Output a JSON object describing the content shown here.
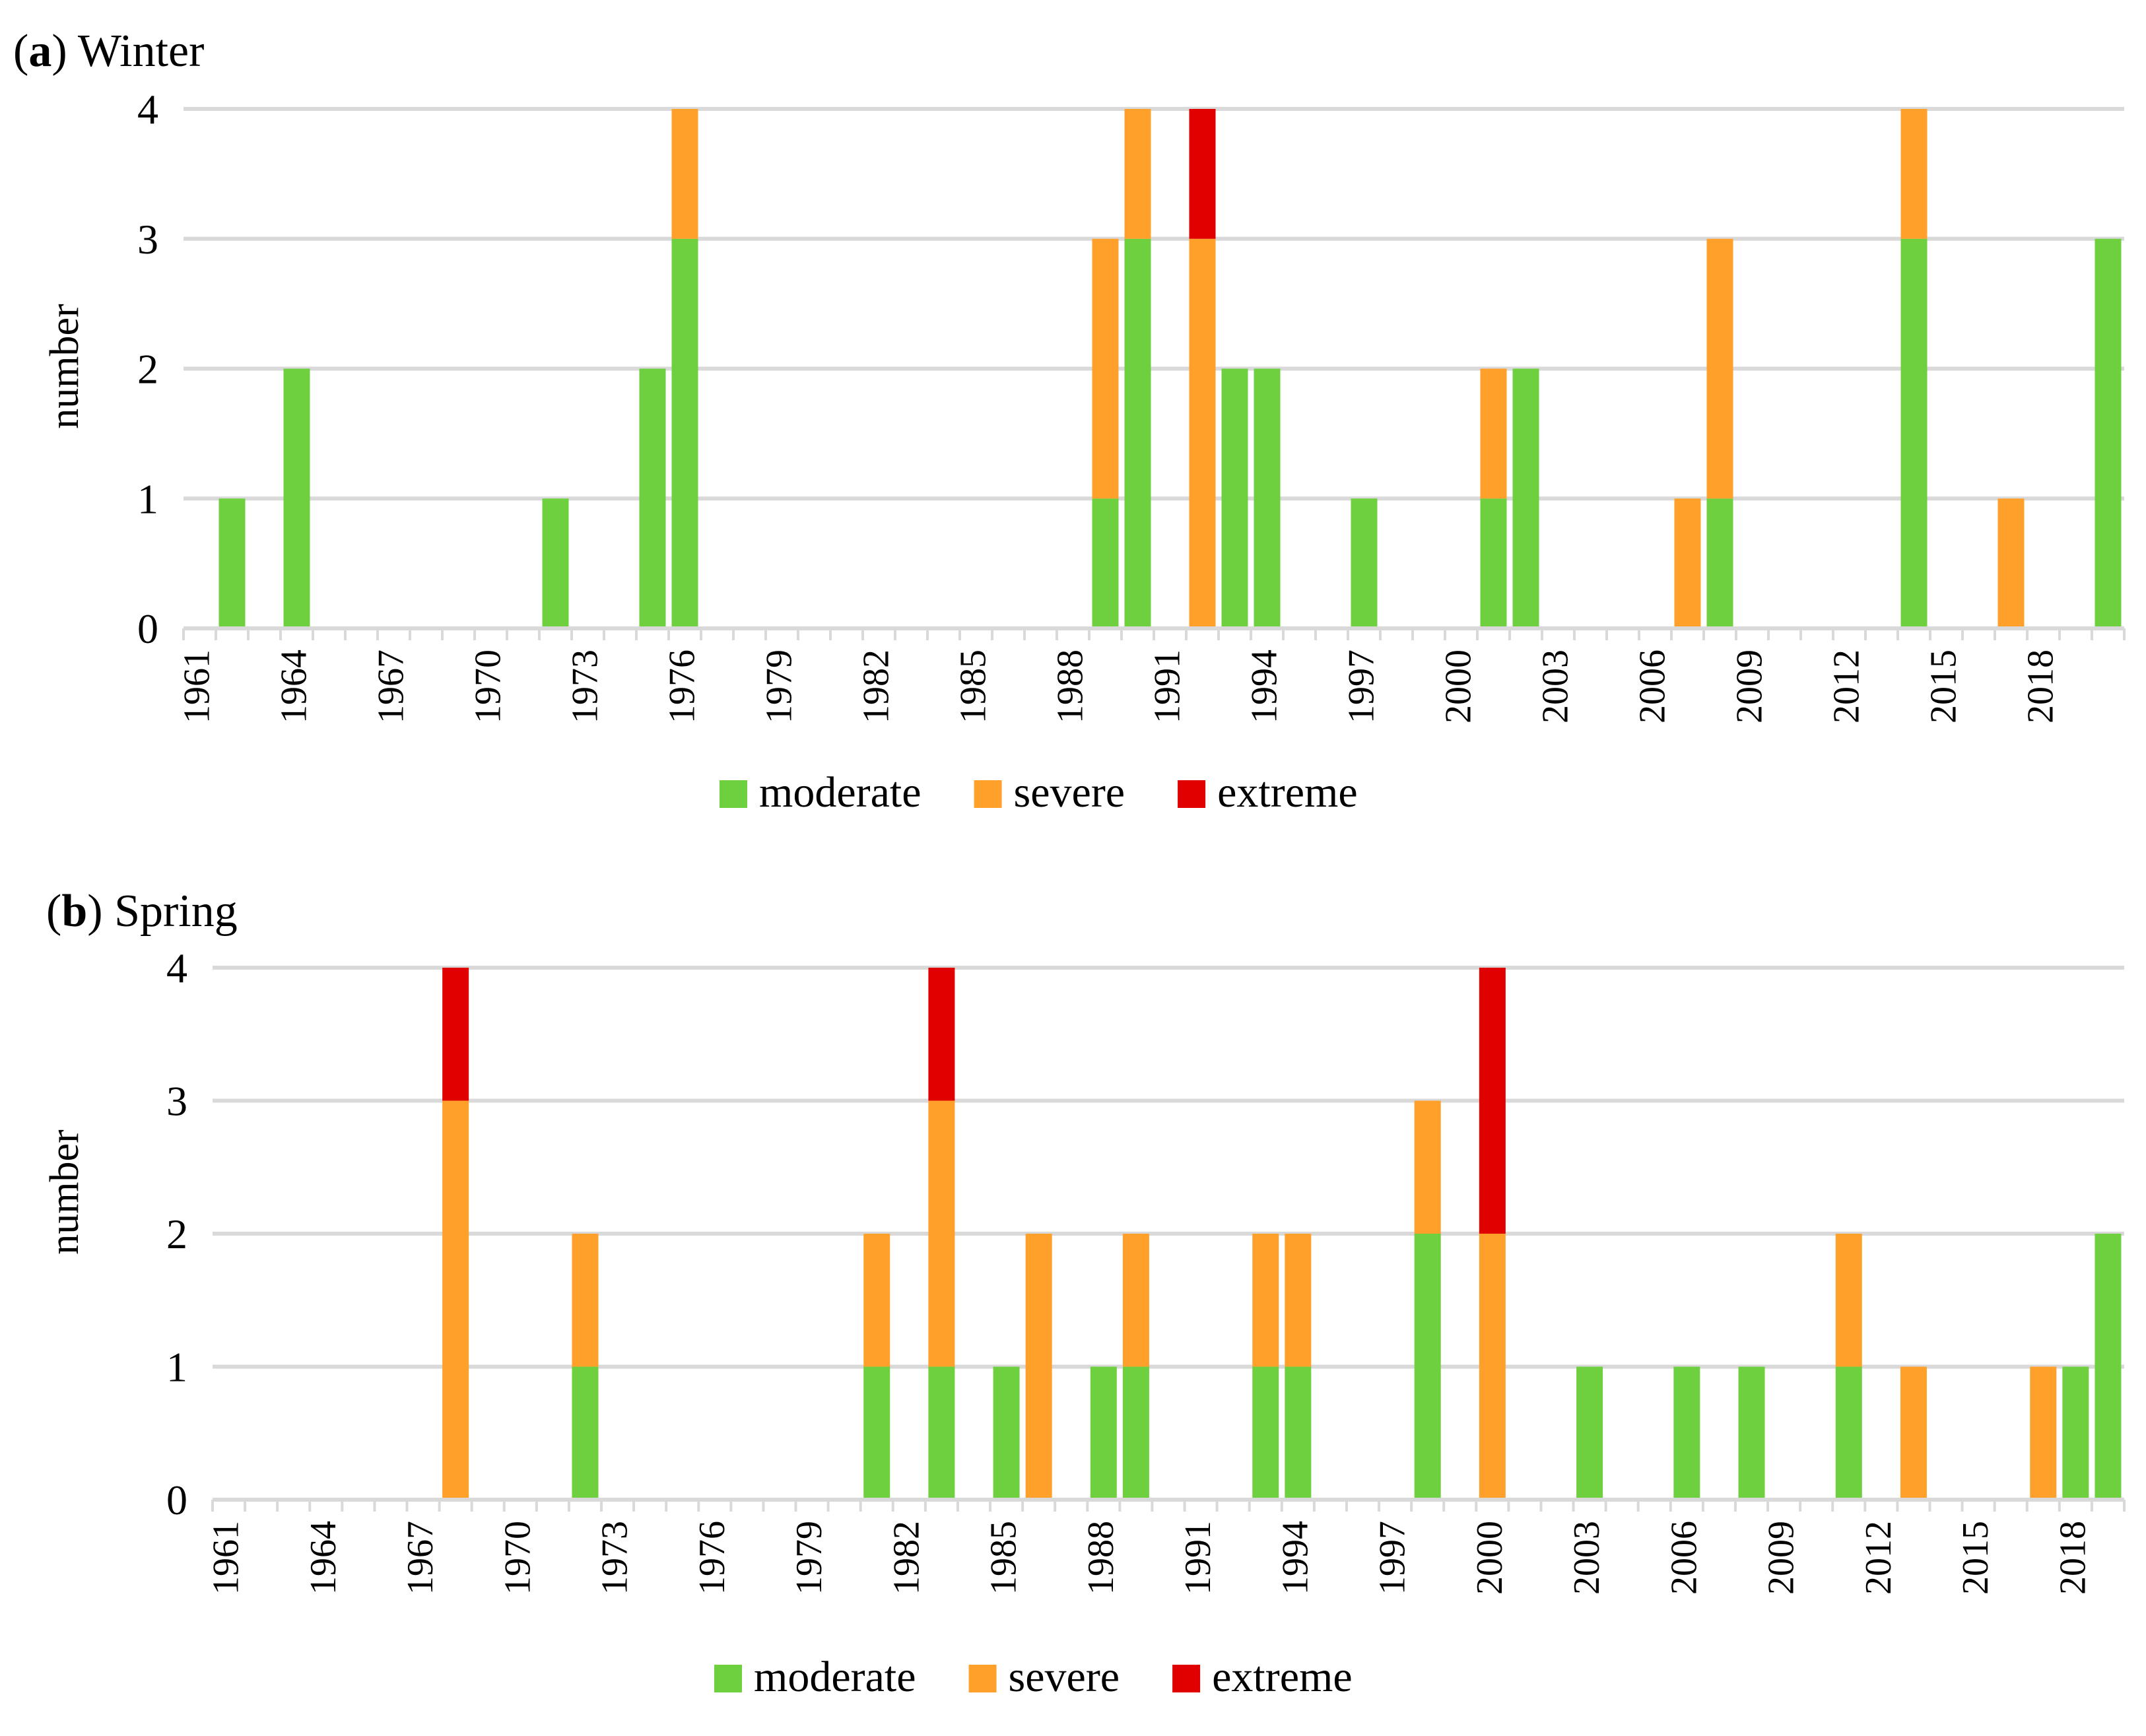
{
  "chart_data": [
    {
      "type": "bar",
      "stacked": true,
      "panel_letter": "a",
      "panel_name": "Winter",
      "ylabel": "number",
      "ylim": [
        0,
        4
      ],
      "yticks": [
        "0",
        "1",
        "2",
        "3",
        "4"
      ],
      "first_year": 1961,
      "last_year": 2020,
      "xtick_labels": [
        "1961",
        "1964",
        "1967",
        "1970",
        "1973",
        "1976",
        "1979",
        "1982",
        "1985",
        "1988",
        "1991",
        "1994",
        "1997",
        "2000",
        "2003",
        "2006",
        "2009",
        "2012",
        "2015",
        "2018"
      ],
      "legend_position": "bottom",
      "legend": [
        "moderate",
        "severe",
        "extreme"
      ],
      "series": [
        {
          "name": "moderate",
          "color": "#6fd03f",
          "data": {
            "1962": 1,
            "1964": 2,
            "1972": 1,
            "1975": 2,
            "1976": 3,
            "1989": 1,
            "1990": 3,
            "1993": 2,
            "1994": 2,
            "1997": 1,
            "2001": 1,
            "2002": 2,
            "2008": 1,
            "2014": 3,
            "2020": 3
          }
        },
        {
          "name": "severe",
          "color": "#ffa02b",
          "data": {
            "1976": 1,
            "1989": 2,
            "1990": 1,
            "1992": 3,
            "2001": 1,
            "2007": 1,
            "2008": 2,
            "2014": 1,
            "2017": 1
          }
        },
        {
          "name": "extreme",
          "color": "#e00000",
          "data": {
            "1992": 1
          }
        }
      ]
    },
    {
      "type": "bar",
      "stacked": true,
      "panel_letter": "b",
      "panel_name": "Spring",
      "ylabel": "number",
      "ylim": [
        0,
        4
      ],
      "yticks": [
        "0",
        "1",
        "2",
        "3",
        "4"
      ],
      "first_year": 1961,
      "last_year": 2019,
      "xtick_labels": [
        "1961",
        "1964",
        "1967",
        "1970",
        "1973",
        "1976",
        "1979",
        "1982",
        "1985",
        "1988",
        "1991",
        "1994",
        "1997",
        "2000",
        "2003",
        "2006",
        "2009",
        "2012",
        "2015",
        "2018"
      ],
      "legend_position": "bottom",
      "legend": [
        "moderate",
        "severe",
        "extreme"
      ],
      "series": [
        {
          "name": "moderate",
          "color": "#6fd03f",
          "data": {
            "1972": 1,
            "1981": 1,
            "1983": 1,
            "1985": 1,
            "1988": 1,
            "1989": 1,
            "1993": 1,
            "1994": 1,
            "1998": 2,
            "2003": 1,
            "2006": 1,
            "2008": 1,
            "2011": 1,
            "2018": 1,
            "2019": 2
          }
        },
        {
          "name": "severe",
          "color": "#ffa02b",
          "data": {
            "1968": 3,
            "1972": 1,
            "1981": 1,
            "1983": 2,
            "1986": 2,
            "1989": 1,
            "1993": 1,
            "1994": 1,
            "1998": 1,
            "2000": 2,
            "2011": 1,
            "2013": 1,
            "2017": 1
          }
        },
        {
          "name": "extreme",
          "color": "#e00000",
          "data": {
            "1968": 1,
            "1983": 1,
            "2000": 2
          }
        }
      ]
    }
  ]
}
